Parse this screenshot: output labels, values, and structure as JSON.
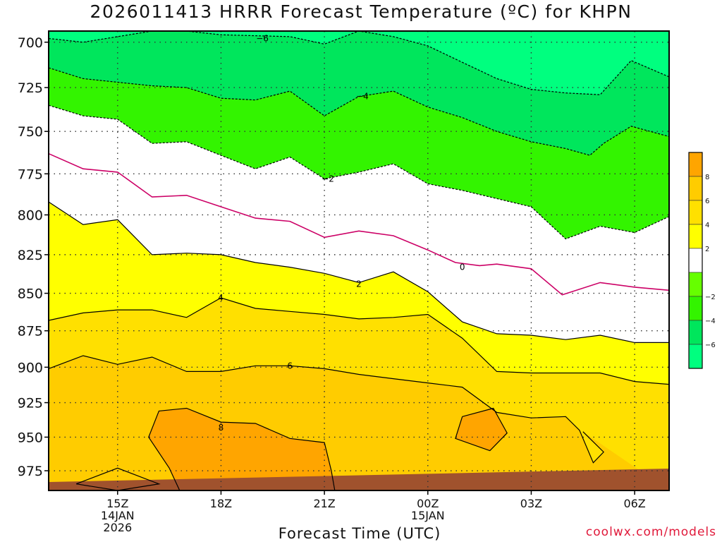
{
  "title": "2026011413 HRRR Forecast Temperature (ºC) for KHPN",
  "credit": "coolwx.com/models",
  "chart_data": {
    "type": "contour",
    "title": "2026011413 HRRR Forecast Temperature (ºC) for KHPN",
    "xlabel": "Forecast Time (UTC)",
    "ylabel": "",
    "x_unit": "forecast hour from 2026-01-14 13Z",
    "xlim": [
      13,
      31
    ],
    "ylim": [
      990,
      694
    ],
    "y_scale": "log-pressure (hPa)",
    "grid": true,
    "x_ticks": [
      {
        "x": 15,
        "label": "15Z",
        "sublabels": [
          "14JAN",
          "2026"
        ]
      },
      {
        "x": 18,
        "label": "18Z",
        "sublabels": []
      },
      {
        "x": 21,
        "label": "21Z",
        "sublabels": []
      },
      {
        "x": 24,
        "label": "00Z",
        "sublabels": [
          "15JAN"
        ]
      },
      {
        "x": 27,
        "label": "03Z",
        "sublabels": []
      },
      {
        "x": 30,
        "label": "06Z",
        "sublabels": []
      }
    ],
    "y_ticks": [
      700,
      725,
      750,
      775,
      800,
      825,
      850,
      875,
      900,
      925,
      950,
      975
    ],
    "colorbar": {
      "levels": [
        -8,
        -6,
        -4,
        -2,
        0,
        2,
        4,
        6,
        8,
        10
      ],
      "tick_labels": [
        "8",
        "6",
        "4",
        "2",
        "",
        "−2",
        "−4",
        "−6"
      ],
      "colors": [
        "#00ff7f",
        "#00e65c",
        "#33f400",
        "#66ff00",
        "#ffffff",
        "#ffff00",
        "#ffe000",
        "#ffcc00",
        "#ffa500"
      ]
    },
    "ground_color": "#a0522d",
    "contours": [
      {
        "label": "−6",
        "color": "#000000",
        "dashed": true,
        "label_at": [
          19.2,
          698
        ],
        "points": [
          [
            13,
            698
          ],
          [
            14,
            700
          ],
          [
            15,
            697
          ],
          [
            16,
            694
          ],
          [
            17,
            694
          ],
          [
            18,
            696
          ],
          [
            20,
            697
          ],
          [
            21,
            701
          ],
          [
            22,
            694
          ],
          [
            23,
            697
          ],
          [
            24,
            702
          ],
          [
            25,
            711
          ],
          [
            26,
            720
          ],
          [
            27,
            726
          ],
          [
            28,
            728
          ],
          [
            29,
            729
          ],
          [
            29.9,
            710
          ],
          [
            31,
            719
          ]
        ]
      },
      {
        "label": "−4",
        "color": "#000000",
        "dashed": true,
        "label_at": [
          22.1,
          730
        ],
        "points": [
          [
            13,
            714
          ],
          [
            14,
            720
          ],
          [
            15,
            722
          ],
          [
            16,
            724
          ],
          [
            17,
            725
          ],
          [
            18,
            731
          ],
          [
            19,
            732
          ],
          [
            20,
            727
          ],
          [
            21,
            741
          ],
          [
            22,
            730
          ],
          [
            23,
            727
          ],
          [
            24,
            736
          ],
          [
            25,
            742
          ],
          [
            26,
            750
          ],
          [
            27,
            756
          ],
          [
            28,
            760
          ],
          [
            28.7,
            764
          ],
          [
            29.1,
            757
          ],
          [
            29.9,
            747
          ],
          [
            31,
            753
          ]
        ]
      },
      {
        "label": "−2",
        "color": "#000000",
        "dashed": true,
        "label_at": [
          21.1,
          778
        ],
        "points": [
          [
            13,
            735
          ],
          [
            14,
            741
          ],
          [
            15,
            743
          ],
          [
            16,
            757
          ],
          [
            17,
            756
          ],
          [
            18,
            764
          ],
          [
            19,
            772
          ],
          [
            20,
            765
          ],
          [
            21,
            778
          ],
          [
            22,
            774
          ],
          [
            23,
            769
          ],
          [
            24,
            781
          ],
          [
            25,
            785
          ],
          [
            26,
            790
          ],
          [
            27,
            795
          ],
          [
            28,
            815
          ],
          [
            29,
            807
          ],
          [
            30,
            811
          ],
          [
            31,
            801
          ]
        ]
      },
      {
        "label": "0",
        "color": "#cc0066",
        "dashed": false,
        "label_at": [
          25,
          833
        ],
        "points": [
          [
            13,
            763
          ],
          [
            14,
            772
          ],
          [
            15,
            774
          ],
          [
            16,
            789
          ],
          [
            17,
            788
          ],
          [
            18,
            795
          ],
          [
            19,
            802
          ],
          [
            20,
            804
          ],
          [
            21,
            814
          ],
          [
            22,
            810
          ],
          [
            23,
            813
          ],
          [
            24,
            822
          ],
          [
            24.8,
            830
          ],
          [
            25.5,
            832
          ],
          [
            26,
            831
          ],
          [
            27,
            834
          ],
          [
            27.9,
            851
          ],
          [
            29,
            843
          ],
          [
            30,
            846
          ],
          [
            31,
            848
          ]
        ]
      },
      {
        "label": "2",
        "color": "#000000",
        "dashed": false,
        "label_at": [
          22,
          844
        ],
        "points": [
          [
            13,
            792
          ],
          [
            14,
            806
          ],
          [
            15,
            803
          ],
          [
            16,
            825
          ],
          [
            17,
            824
          ],
          [
            18,
            825
          ],
          [
            19,
            830
          ],
          [
            20,
            833
          ],
          [
            21,
            837
          ],
          [
            22,
            843
          ],
          [
            23,
            836
          ],
          [
            24,
            849
          ],
          [
            25,
            869
          ],
          [
            26,
            877
          ],
          [
            27,
            878
          ],
          [
            28,
            881
          ],
          [
            29,
            878
          ],
          [
            30,
            883
          ],
          [
            31,
            883
          ]
        ]
      },
      {
        "label": "4",
        "color": "#000000",
        "dashed": false,
        "label_at": [
          17.99,
          853
        ],
        "points": [
          [
            13,
            868
          ],
          [
            14,
            863
          ],
          [
            15,
            861
          ],
          [
            16,
            861
          ],
          [
            17,
            866
          ],
          [
            18,
            853
          ],
          [
            19,
            860
          ],
          [
            20,
            862
          ],
          [
            21,
            864
          ],
          [
            22,
            867
          ],
          [
            23,
            866
          ],
          [
            24,
            864
          ],
          [
            25,
            880
          ],
          [
            26,
            903
          ],
          [
            27,
            904
          ],
          [
            28,
            904
          ],
          [
            29,
            904
          ],
          [
            30,
            910
          ],
          [
            31,
            912
          ]
        ]
      },
      {
        "label": "6",
        "color": "#000000",
        "dashed": false,
        "label_at": [
          20,
          899
        ],
        "points": [
          [
            13,
            901
          ],
          [
            14,
            892
          ],
          [
            15,
            898
          ],
          [
            16,
            893
          ],
          [
            17,
            903
          ],
          [
            18,
            903
          ],
          [
            19,
            899
          ],
          [
            20,
            899
          ],
          [
            21,
            901
          ],
          [
            22,
            905
          ],
          [
            23,
            908
          ],
          [
            24,
            911
          ],
          [
            25,
            914
          ],
          [
            26,
            932
          ],
          [
            27,
            936
          ],
          [
            28,
            935
          ],
          [
            28.4,
            945
          ],
          [
            28.8,
            969
          ],
          [
            29.1,
            961
          ],
          [
            28.5,
            946
          ]
        ]
      },
      {
        "label": "8",
        "color": "#000000",
        "dashed": false,
        "label_at": [
          18,
          943
        ],
        "points": [
          [
            16.8,
            990
          ],
          [
            16.5,
            973
          ],
          [
            15.9,
            950
          ],
          [
            16.2,
            931
          ],
          [
            17,
            929
          ],
          [
            18,
            939
          ],
          [
            19,
            940
          ],
          [
            20,
            951
          ],
          [
            21,
            954
          ],
          [
            21.2,
            975
          ],
          [
            21.3,
            990
          ]
        ]
      },
      {
        "label": "",
        "color": "#000000",
        "dashed": false,
        "label_at": null,
        "points": [
          [
            25,
            935
          ],
          [
            25.9,
            929
          ],
          [
            26.3,
            947
          ],
          [
            25.8,
            960
          ],
          [
            24.8,
            951
          ],
          [
            25,
            935
          ]
        ]
      },
      {
        "label": "",
        "color": "#000000",
        "dashed": false,
        "label_at": null,
        "points": [
          [
            13.8,
            985
          ],
          [
            15,
            973
          ],
          [
            16.2,
            985
          ],
          [
            15,
            990
          ],
          [
            13.8,
            985
          ]
        ]
      }
    ]
  }
}
